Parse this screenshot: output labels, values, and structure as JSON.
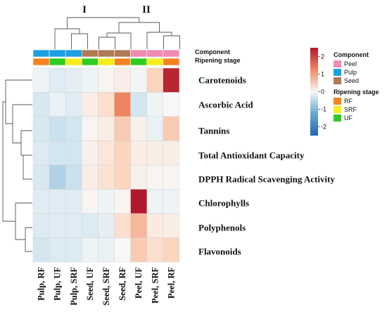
{
  "chart_data": {
    "type": "heatmap",
    "rows": [
      "Carotenoids",
      "Ascorbic Acid",
      "Tannins",
      "Total Antioxidant Capacity",
      "DPPH Radical Scavenging Activity",
      "Chlorophylls",
      "Polyphenols",
      "Flavonoids"
    ],
    "columns": [
      "Pulp, RF",
      "Pulp, UF",
      "Pulp, SRF",
      "Seed, UF",
      "Seed, SRF",
      "Seed, RF",
      "Peel, UF",
      "Peel, SRF",
      "Peel, RF"
    ],
    "values": [
      [
        -0.2,
        -0.5,
        -0.4,
        -0.2,
        0.1,
        0.3,
        -0.1,
        0.9,
        2.4
      ],
      [
        -0.7,
        -0.3,
        -0.5,
        0.3,
        0.7,
        1.7,
        -0.8,
        -0.2,
        0.0
      ],
      [
        -0.7,
        -0.9,
        -0.8,
        0.1,
        0.3,
        1.0,
        0.2,
        -0.3,
        1.0
      ],
      [
        -0.6,
        -0.8,
        -0.8,
        0.2,
        0.5,
        0.9,
        0.3,
        0.3,
        0.3
      ],
      [
        -0.7,
        -1.1,
        -0.9,
        0.3,
        0.6,
        0.9,
        0.2,
        0.1,
        0.1
      ],
      [
        -0.5,
        -0.5,
        -0.5,
        0.1,
        -0.2,
        0.1,
        2.6,
        -0.2,
        -0.2
      ],
      [
        -0.6,
        -0.5,
        -0.5,
        -0.6,
        -0.4,
        0.7,
        1.2,
        0.4,
        0.3
      ],
      [
        -0.8,
        -0.6,
        -0.6,
        -0.2,
        -0.3,
        0.0,
        1.0,
        0.7,
        0.9
      ]
    ],
    "column_annotations": {
      "component": [
        "Pulp",
        "Pulp",
        "Pulp",
        "Seed",
        "Seed",
        "Seed",
        "Peel",
        "Peel",
        "Peel"
      ],
      "ripening_stage": [
        "RF",
        "UF",
        "SRF",
        "UF",
        "SRF",
        "RF",
        "UF",
        "SRF",
        "RF"
      ]
    },
    "annotation_titles": {
      "component": "Component",
      "ripening_stage": "Ripening stage"
    },
    "cluster_labels": [
      "I",
      "II"
    ],
    "color_scale": {
      "range": [
        -2.5,
        2.5
      ],
      "ticks": [
        "2",
        "1",
        "0",
        "-1",
        "-2"
      ],
      "low": "#2c6fb0",
      "mid": "#f7f7f7",
      "high": "#b2182b"
    },
    "legend": {
      "component_title": "Component",
      "component_items": [
        {
          "label": "Peel",
          "color": "#f08cb4"
        },
        {
          "label": "Pulp",
          "color": "#1aa0e0"
        },
        {
          "label": "Seed",
          "color": "#b07a55"
        }
      ],
      "ripening_title": "Ripening stage",
      "ripening_items": [
        {
          "label": "RF",
          "color": "#f5821f"
        },
        {
          "label": "SRF",
          "color": "#f5ee1a"
        },
        {
          "label": "UF",
          "color": "#2ecc1e"
        }
      ]
    }
  }
}
